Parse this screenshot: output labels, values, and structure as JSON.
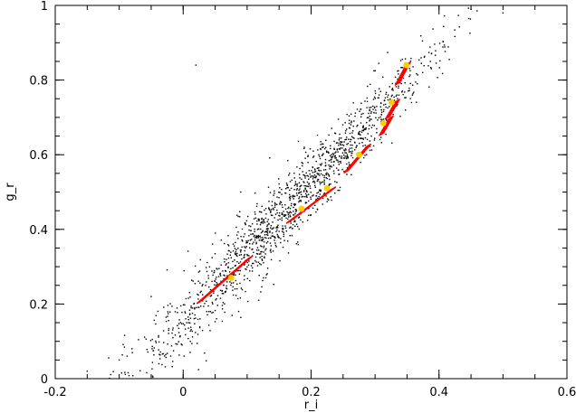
{
  "chart_data": {
    "type": "scatter",
    "title": "",
    "xlabel": "r_i",
    "ylabel": "g_r",
    "xlim": [
      -0.2,
      0.6
    ],
    "ylim": [
      0,
      1
    ],
    "xticks": [
      -0.2,
      0,
      0.2,
      0.4,
      0.6
    ],
    "xtick_labels": [
      "-0.2",
      "0",
      "0.2",
      "0.4",
      "0.6"
    ],
    "yticks": [
      0,
      0.2,
      0.4,
      0.6,
      0.8,
      1
    ],
    "ytick_labels": [
      "0",
      "0.2",
      "0.4",
      "0.6",
      "0.8",
      "1"
    ],
    "grid": false,
    "legend": "none",
    "series": [
      {
        "marker": "dot",
        "color": "#000000",
        "point_count": 1500,
        "trend": {
          "slope": 1.82,
          "intercept": 0.155
        },
        "x_center": 0.16,
        "x_spread": 0.12,
        "y_scatter": 0.045,
        "x_range": [
          -0.18,
          0.52
        ],
        "outliers": [
          [
            0.02,
            0.84
          ],
          [
            -0.08,
            0.08
          ],
          [
            -0.1,
            0.05
          ],
          [
            -0.15,
            0.02
          ],
          [
            -0.05,
            0.22
          ],
          [
            0.5,
            0.98
          ],
          [
            0.45,
            0.99
          ],
          [
            0.09,
            0.5
          ]
        ]
      },
      {
        "marker": "line-cluster",
        "color": "#ff0000",
        "segments": [
          {
            "x": [
              0.025,
              0.105
            ],
            "y": [
              0.205,
              0.325
            ]
          },
          {
            "x": [
              0.165,
              0.235
            ],
            "y": [
              0.42,
              0.51
            ]
          },
          {
            "x": [
              0.255,
              0.29
            ],
            "y": [
              0.555,
              0.625
            ]
          },
          {
            "x": [
              0.31,
              0.325
            ],
            "y": [
              0.655,
              0.7
            ]
          },
          {
            "x": [
              0.32,
              0.335
            ],
            "y": [
              0.7,
              0.745
            ]
          },
          {
            "x": [
              0.335,
              0.352
            ],
            "y": [
              0.79,
              0.845
            ]
          }
        ]
      },
      {
        "marker": "circle",
        "color": "#ffcc00",
        "points": [
          [
            0.075,
            0.27
          ],
          [
            0.185,
            0.455
          ],
          [
            0.225,
            0.51
          ],
          [
            0.275,
            0.6
          ],
          [
            0.313,
            0.685
          ],
          [
            0.326,
            0.74
          ],
          [
            0.349,
            0.84
          ]
        ]
      }
    ]
  }
}
